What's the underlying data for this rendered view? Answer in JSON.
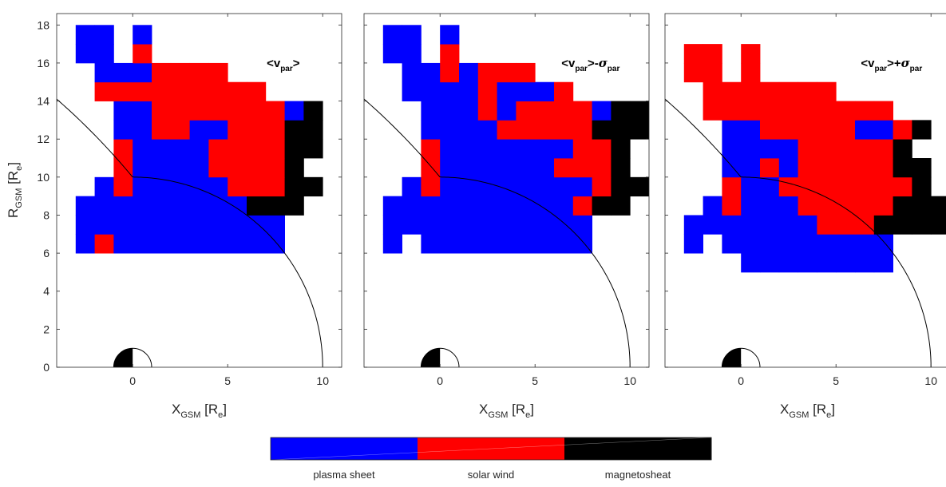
{
  "chart_data": {
    "type": "heatmap",
    "category_colors": {
      "1": "#0000ff",
      "2": "#ff0000",
      "3": "#000000"
    },
    "colorbar": {
      "labels": [
        "plasma sheet",
        "solar wind",
        "magnetosheat"
      ],
      "colors": [
        "#0000ff",
        "#ff0000",
        "#000000"
      ]
    },
    "axes": {
      "x_ticks": [
        "0",
        "5",
        "10"
      ],
      "y_ticks": [
        "0",
        "2",
        "4",
        "6",
        "8",
        "10",
        "12",
        "14",
        "16",
        "18"
      ],
      "xlabel": {
        "main": "X",
        "sub": "GSM",
        "unit_open": " [R",
        "unit_sub": "e",
        "unit_close": "]"
      },
      "ylabel": {
        "main": "R",
        "sub": "GSM",
        "unit_open": " [R",
        "unit_sub": "e",
        "unit_close": "]"
      },
      "xlim": [
        -4,
        11
      ],
      "ylim": [
        0,
        18.6
      ],
      "cell_size": 1,
      "magnetopause_radius": 10
    },
    "panels": [
      {
        "title": {
          "open": "<v",
          "sub": "par",
          "close": ">",
          "extra_op": "",
          "extra_sym": "",
          "extra_sub": ""
        },
        "x_start": -3,
        "y_start": 6,
        "rows": [
          "12111111111",
          "11111111111",
          "111111111333",
          "0121111122233",
          "002111122223",
          "0021111222233",
          "0011221122233",
          "0011222222213",
          "0222222222",
          "01112222",
          "1102",
          "1101"
        ]
      },
      {
        "title": {
          "open": "<v",
          "sub": "par",
          "close": ">",
          "extra_op": "-",
          "extra_sym": "σ",
          "extra_sub": "par"
        },
        "x_start": -3,
        "y_start": 6,
        "rows": [
          "10111111111",
          "11111111111",
          "1111111111233",
          "01211111111233",
          "0021111112223",
          "0021111111223",
          "00111122222333",
          "00111212222133",
          "0111121112",
          "01121222",
          "1102",
          "1101"
        ]
      },
      {
        "title": {
          "open": "<v",
          "sub": "par",
          "close": ">",
          "extra_op": "+",
          "extra_sym": "σ",
          "extra_sub": "par"
        },
        "x_start": -3,
        "y_start": 5,
        "rows": [
          "00011111111",
          "10111111111",
          "11111112223333",
          "01211122222333",
          "0021122222223",
          "0011212222233",
          "001111222223",
          "0011222221123",
          "02222222222",
          "02222222",
          "2202",
          "2202"
        ]
      }
    ]
  }
}
